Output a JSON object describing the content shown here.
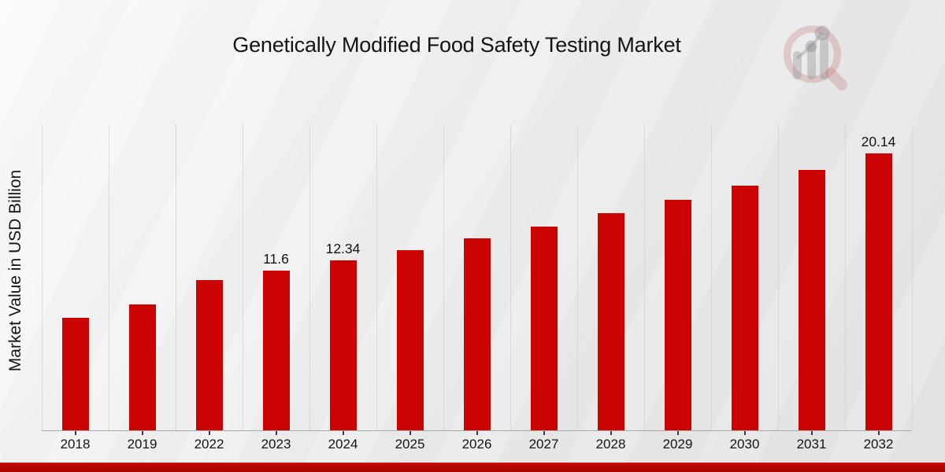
{
  "chart_data": {
    "type": "bar",
    "title": "Genetically Modified Food Safety Testing Market",
    "xlabel": "",
    "ylabel": "Market Value in USD Billion",
    "categories": [
      "2018",
      "2019",
      "2022",
      "2023",
      "2024",
      "2025",
      "2026",
      "2027",
      "2028",
      "2029",
      "2030",
      "2031",
      "2032"
    ],
    "values": [
      8.2,
      9.15,
      10.95,
      11.6,
      12.34,
      13.12,
      13.95,
      14.83,
      15.77,
      16.76,
      17.82,
      18.95,
      20.14
    ],
    "shown_point_labels": [
      "",
      "",
      "",
      "11.6",
      "12.34",
      "",
      "",
      "",
      "",
      "",
      "",
      "",
      "20.14"
    ],
    "ylim": [
      0,
      22.2
    ],
    "y_tick_labels_visible": false,
    "grid": "vertical dotted separators at category boundaries",
    "legend_position": "none",
    "bar_color": "#cb0303",
    "accent_bar_color": "#b50505"
  },
  "logo": {
    "name": "magnifier-bar-chart watermark"
  }
}
